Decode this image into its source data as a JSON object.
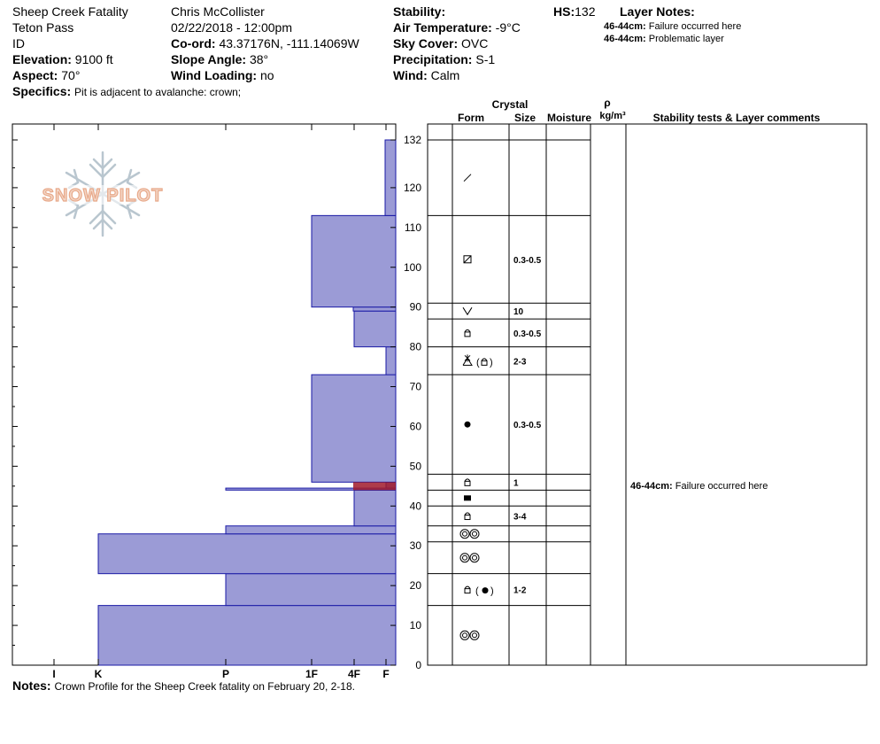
{
  "header": {
    "site": "Sheep Creek Fatality",
    "location": "Teton Pass",
    "state": "ID",
    "elevation_label": "Elevation:",
    "elevation": "9100 ft",
    "aspect_label": "Aspect:",
    "aspect": "70°",
    "specifics_label": "Specifics:",
    "specifics": "Pit is adjacent to avalanche: crown;",
    "observer": "Chris McCollister",
    "datetime": "02/22/2018 - 12:00pm",
    "coord_label": "Co-ord:",
    "coord": "43.37176N, -111.14069W",
    "slope_label": "Slope Angle:",
    "slope": "38°",
    "wind_loading_label": "Wind Loading:",
    "wind_loading": "no",
    "stability_label": "Stability:",
    "stability": "",
    "air_temp_label": "Air Temperature:",
    "air_temp": "-9°C",
    "sky_label": "Sky Cover:",
    "sky": "OVC",
    "precip_label": "Precipitation:",
    "precip": "S-1",
    "wind_label": "Wind:",
    "wind": "Calm",
    "hs_label": "HS:",
    "hs": "132",
    "layer_notes_label": "Layer Notes:",
    "layer_notes": [
      {
        "range": "46-44cm:",
        "text": "Failure occurred here"
      },
      {
        "range": "46-44cm:",
        "text": "Problematic layer"
      }
    ]
  },
  "notes": {
    "label": "Notes:",
    "text": "Crown Profile for the Sheep Creek fatality on February 20, 2-18."
  },
  "columns": {
    "crystal": "Crystal",
    "form": "Form",
    "size": "Size",
    "moisture": "Moisture",
    "rho": "ρ",
    "density_unit": "kg/m³",
    "stability_comments": "Stability tests & Layer comments"
  },
  "colors": {
    "bar_fill": "#9b9bd6",
    "bar_stroke": "#1a1aa6",
    "weak_layer": "#a01a2a",
    "logo": "#e8a98a",
    "logo_flake": "#b9c6cf"
  },
  "logo_text": "SNOW PILOT",
  "chart_data": {
    "type": "bar",
    "orientation": "horizontal",
    "title": "",
    "ylabel": "",
    "ylim": [
      0,
      132
    ],
    "y_ticks": [
      0,
      10,
      20,
      30,
      40,
      50,
      60,
      70,
      80,
      90,
      100,
      110,
      120,
      132
    ],
    "hardness_scale": [
      "I",
      "K",
      "P",
      "1F",
      "4F",
      "F"
    ],
    "series": [
      {
        "values": [
          {
            "bottom": 0,
            "top": 15,
            "hardness": "K"
          },
          {
            "bottom": 15,
            "top": 23,
            "hardness": "P"
          },
          {
            "bottom": 23,
            "top": 33,
            "hardness": "K"
          },
          {
            "bottom": 33,
            "top": 35,
            "hardness": "P"
          },
          {
            "bottom": 35,
            "top": 44,
            "hardness": "4F"
          },
          {
            "bottom": 44,
            "top": 44.5,
            "hardness": "P"
          },
          {
            "bottom": 44.5,
            "top": 46,
            "hardness": "F"
          },
          {
            "bottom": 46,
            "top": 73,
            "hardness": "1F"
          },
          {
            "bottom": 73,
            "top": 80,
            "hardness": "F"
          },
          {
            "bottom": 80,
            "top": 89,
            "hardness": "4F"
          },
          {
            "bottom": 89,
            "top": 90,
            "hardness": "4F-"
          },
          {
            "bottom": 90,
            "top": 113,
            "hardness": "1F"
          },
          {
            "bottom": 113,
            "top": 132,
            "hardness": "F-"
          }
        ]
      }
    ],
    "weak_layer": {
      "bottom": 44,
      "top": 46
    },
    "layers": [
      {
        "from": 132,
        "to": 113,
        "form": "new-snow-icon",
        "size": ""
      },
      {
        "from": 113,
        "to": 91,
        "form": "decomposing-icon",
        "size": "0.3-0.5"
      },
      {
        "from": 91,
        "to": 87,
        "form": "depth-hoar-icon",
        "size": "10"
      },
      {
        "from": 87,
        "to": 80,
        "form": "faceted-icon",
        "size": "0.3-0.5"
      },
      {
        "from": 80,
        "to": 73,
        "form": "surface-hoar-faceted-icon",
        "size": "2-3"
      },
      {
        "from": 73,
        "to": 48,
        "form": "rounded-icon",
        "size": "0.3-0.5"
      },
      {
        "from": 48,
        "to": 44,
        "form": "faceted-icon",
        "size": "1"
      },
      {
        "from": 44,
        "to": 40,
        "form": "ice-layer-icon",
        "size": ""
      },
      {
        "from": 40,
        "to": 35,
        "form": "faceted-icon",
        "size": "3-4"
      },
      {
        "from": 35,
        "to": 31,
        "form": "melt-forms-icon",
        "size": ""
      },
      {
        "from": 31,
        "to": 23,
        "form": "melt-forms-icon",
        "size": ""
      },
      {
        "from": 23,
        "to": 15,
        "form": "faceted-rounding-icon",
        "size": "1-2"
      },
      {
        "from": 15,
        "to": 0,
        "form": "melt-forms-icon",
        "size": ""
      }
    ],
    "comments": [
      {
        "depth": 45,
        "range": "46-44cm:",
        "text": "Failure occurred here"
      }
    ]
  }
}
